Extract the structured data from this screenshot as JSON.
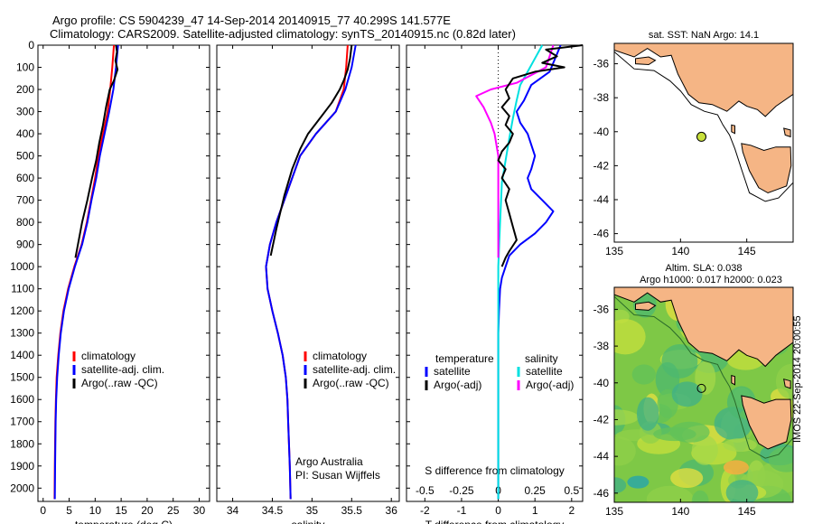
{
  "header": {
    "line1": "Argo profile: CS 5904239_47 14-Sep-2014 20140915_77 40.299S 141.577E",
    "line2": "Climatology: CARS2009. Satellite-adjusted climatology: synTS_20140915.nc (0.82d later)"
  },
  "colors": {
    "climatology": "#ff0000",
    "satellite": "#0000ff",
    "argo": "#000000",
    "sat_salinity": "#00e0e0",
    "argo_salinity": "#ff00ff",
    "land": "#f5b585",
    "sst_ocean": "#ffffff",
    "dot": "#c8e03c"
  },
  "chart_data": [
    {
      "type": "line",
      "panel": "temperature",
      "xlabel": "temperature (deg C)",
      "ylabel": "",
      "xlim": [
        -1,
        32
      ],
      "ylim": [
        2060,
        0
      ],
      "xticks": [
        0,
        5,
        10,
        15,
        20,
        25,
        30
      ],
      "yticks": [
        0,
        100,
        200,
        300,
        400,
        500,
        600,
        700,
        800,
        900,
        1000,
        1100,
        1200,
        1300,
        1400,
        1500,
        1600,
        1700,
        1800,
        1900,
        2000
      ],
      "legend": [
        "climatology",
        "satellite-adj. clim.",
        "Argo(..raw -QC)"
      ],
      "series": [
        {
          "name": "climatology",
          "color": "#ff0000",
          "x": [
            13.6,
            13.3,
            12.9,
            12.4,
            11.5,
            10.6,
            10.0,
            9.2,
            8.4,
            7.4,
            6.0,
            4.8,
            3.9,
            3.3,
            2.9,
            2.6,
            2.45,
            2.35,
            2.3,
            2.25,
            2.2
          ],
          "y": [
            0,
            100,
            200,
            300,
            400,
            500,
            600,
            700,
            800,
            900,
            1000,
            1100,
            1200,
            1300,
            1400,
            1500,
            1600,
            1700,
            1800,
            1900,
            2050
          ]
        },
        {
          "name": "satellite-adj. clim.",
          "color": "#0000ff",
          "x": [
            14.4,
            14.0,
            13.5,
            12.7,
            11.8,
            10.9,
            10.2,
            9.3,
            8.5,
            7.5,
            6.1,
            4.9,
            4.0,
            3.4,
            3.0,
            2.7,
            2.5,
            2.4,
            2.35,
            2.3,
            2.25
          ],
          "y": [
            0,
            100,
            200,
            300,
            400,
            500,
            600,
            700,
            800,
            900,
            1000,
            1100,
            1200,
            1300,
            1400,
            1500,
            1600,
            1700,
            1800,
            1900,
            2050
          ]
        },
        {
          "name": "Argo(..raw -QC)",
          "color": "#000000",
          "x": [
            14.0,
            14.2,
            13.9,
            14.3,
            13.6,
            12.8,
            12.1,
            11.5,
            10.8,
            10.2,
            9.4,
            8.5,
            7.5,
            6.2
          ],
          "y": [
            0,
            30,
            70,
            110,
            160,
            200,
            280,
            360,
            440,
            520,
            600,
            700,
            800,
            960
          ]
        }
      ]
    },
    {
      "type": "line",
      "panel": "salinity",
      "xlabel": "salinity",
      "ylabel": "",
      "xlim": [
        33.8,
        36.1
      ],
      "ylim": [
        2060,
        0
      ],
      "xticks": [
        34,
        34.5,
        35,
        35.5,
        36
      ],
      "xticklabels": [
        "34",
        "34.5",
        "35",
        "35.5",
        "36"
      ],
      "legend": [
        "climatology",
        "satellite-adj. clim.",
        "Argo(..raw -QC)"
      ],
      "annotation": [
        "Argo Australia",
        "PI: Susan Wijffels"
      ],
      "series": [
        {
          "name": "climatology",
          "color": "#ff0000",
          "x": [
            35.45,
            35.43,
            35.4,
            35.3,
            35.05,
            34.85,
            34.75,
            34.65,
            34.55,
            34.47,
            34.42,
            34.44,
            34.5,
            34.57,
            34.63,
            34.67,
            34.69,
            34.7,
            34.71,
            34.72,
            34.73
          ],
          "y": [
            0,
            100,
            200,
            300,
            400,
            500,
            600,
            700,
            800,
            900,
            1000,
            1100,
            1200,
            1300,
            1400,
            1500,
            1600,
            1700,
            1800,
            1900,
            2050
          ]
        },
        {
          "name": "satellite-adj. clim.",
          "color": "#0000ff",
          "x": [
            35.55,
            35.5,
            35.42,
            35.3,
            35.05,
            34.85,
            34.75,
            34.65,
            34.55,
            34.47,
            34.42,
            34.44,
            34.5,
            34.57,
            34.63,
            34.67,
            34.69,
            34.7,
            34.71,
            34.72,
            34.73
          ],
          "y": [
            0,
            100,
            200,
            300,
            400,
            500,
            600,
            700,
            800,
            900,
            1000,
            1100,
            1200,
            1300,
            1400,
            1500,
            1600,
            1700,
            1800,
            1900,
            2050
          ]
        },
        {
          "name": "Argo(..raw -QC)",
          "color": "#000000",
          "x": [
            35.5,
            35.48,
            35.45,
            35.4,
            35.35,
            35.25,
            35.1,
            34.95,
            34.85,
            34.75,
            34.65,
            34.55,
            34.48
          ],
          "y": [
            0,
            60,
            110,
            160,
            200,
            260,
            330,
            400,
            470,
            560,
            680,
            830,
            950
          ]
        }
      ]
    },
    {
      "type": "line",
      "panel": "difference",
      "xlabel": "T difference from climatology",
      "xlabel_top": "S difference from climatology",
      "xlim": [
        -2.5,
        2.3
      ],
      "ylim": [
        2060,
        0
      ],
      "xticks": [
        -2,
        -1,
        0,
        1,
        2
      ],
      "s_ticks": [
        -0.5,
        -0.25,
        0,
        0.25,
        0.5
      ],
      "s_ticklabels": [
        "-0.5",
        "-0.25",
        "0",
        "0.25",
        "0.5"
      ],
      "legend_left_title": "temperature",
      "legend_right_title": "salinity",
      "legend_left": [
        "satellite",
        "Argo(-adj)"
      ],
      "legend_right": [
        "satellite",
        "Argo(-adj)"
      ],
      "series": [
        {
          "name": "satellite",
          "group": "temperature",
          "color": "#0000ff",
          "x": [
            1.7,
            1.6,
            1.5,
            1.4,
            0.9,
            0.7,
            0.5,
            0.6,
            0.8,
            1.0,
            0.9,
            0.8,
            0.9,
            1.2,
            1.5,
            1.3,
            1.0,
            0.6,
            0.3,
            0.2,
            0.1,
            0.05,
            0.02,
            0.0,
            0.0,
            0.0,
            0.0,
            0.0,
            0.0,
            0.0
          ],
          "y": [
            0,
            40,
            80,
            120,
            180,
            250,
            300,
            350,
            400,
            500,
            560,
            600,
            650,
            700,
            750,
            800,
            850,
            900,
            950,
            1000,
            1050,
            1100,
            1200,
            1300,
            1400,
            1500,
            1600,
            1700,
            1900,
            2050
          ]
        },
        {
          "name": "satellite",
          "group": "salinity",
          "color": "#00e0e0",
          "x": [
            1.2,
            1.0,
            0.8,
            0.6,
            0.5,
            0.4,
            0.3,
            0.2,
            0.1,
            0.05,
            0.0,
            0.0,
            0.0
          ],
          "y": [
            0,
            60,
            120,
            180,
            250,
            330,
            420,
            520,
            620,
            800,
            1000,
            1500,
            2050
          ]
        },
        {
          "name": "Argo(-adj)",
          "group": "salinity",
          "color": "#ff00ff",
          "x": [
            1.5,
            1.3,
            0.5,
            -0.2,
            -0.6,
            -0.4,
            -0.2,
            -0.1,
            0.0,
            0.0
          ],
          "y": [
            0,
            100,
            170,
            200,
            230,
            280,
            350,
            400,
            500,
            960
          ]
        },
        {
          "name": "Argo(-adj)",
          "group": "temperature",
          "color": "#000000",
          "x": [
            2.3,
            1.3,
            1.6,
            1.2,
            1.8,
            1.0,
            0.4,
            0.2,
            0.3,
            0.1,
            0.3,
            0.2,
            0.4,
            0.3,
            0.1,
            0.0,
            0.2,
            0.1,
            0.3,
            0.2,
            0.3,
            0.4,
            0.5,
            0.3,
            0.2,
            0.1
          ],
          "y": [
            0,
            20,
            50,
            80,
            100,
            120,
            150,
            200,
            240,
            280,
            320,
            360,
            400,
            440,
            480,
            520,
            560,
            600,
            650,
            700,
            760,
            820,
            880,
            930,
            960,
            1000
          ]
        }
      ]
    },
    {
      "type": "map",
      "panel": "sst-map",
      "title": "sat. SST: NaN Argo: 14.1",
      "xlim": [
        135,
        148.5
      ],
      "ylim": [
        -46.5,
        -34.8
      ],
      "xticks": [
        135,
        140,
        145
      ],
      "yticks": [
        -36,
        -38,
        -40,
        -42,
        -44,
        -46
      ],
      "marker": {
        "lon": 141.58,
        "lat": -40.3
      }
    },
    {
      "type": "map",
      "panel": "sla-map",
      "title": "Altim. SLA: 0.038",
      "subtitle": "Argo h1000: 0.017 h2000: 0.023",
      "xlim": [
        135,
        148.5
      ],
      "ylim": [
        -46.5,
        -34.8
      ],
      "xticks": [
        135,
        140,
        145
      ],
      "yticks": [
        -36,
        -38,
        -40,
        -42,
        -44,
        -46
      ],
      "marker": {
        "lon": 141.58,
        "lat": -40.3
      }
    }
  ],
  "stamp": "IMOS 22-Sep-2014 20:00:55"
}
